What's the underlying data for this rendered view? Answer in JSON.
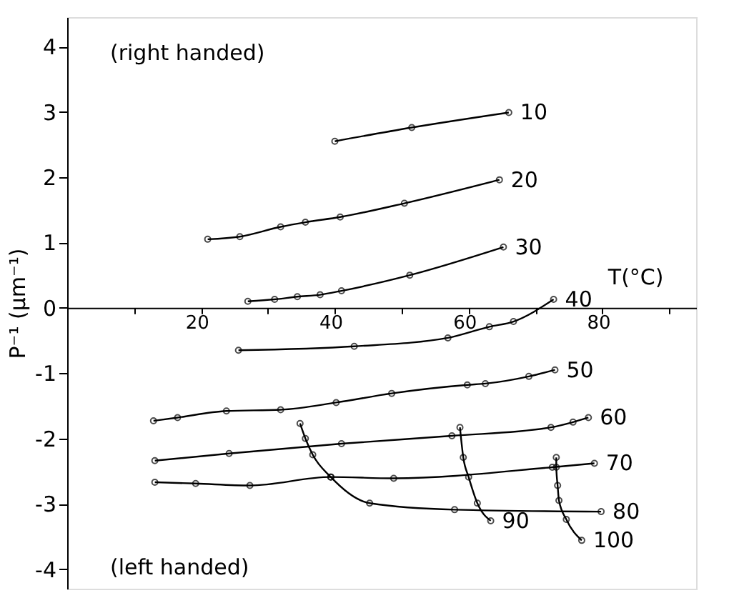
{
  "chart_data": {
    "type": "line",
    "xlabel": "T(°C)",
    "ylabel": "P⁻¹ (μm⁻¹)",
    "xlim": [
      0,
      94
    ],
    "ylim": [
      -4.3,
      4.45
    ],
    "xticks": [
      {
        "value": 10,
        "label": null
      },
      20,
      {
        "value": 30,
        "label": null
      },
      40,
      {
        "value": 50,
        "label": null
      },
      60,
      {
        "value": 70,
        "label": null
      },
      80,
      {
        "value": 90,
        "label": null
      }
    ],
    "yticks": [
      -4,
      -3,
      -2,
      -1,
      0,
      1,
      2,
      3,
      4
    ],
    "grid": false,
    "marker": "circle",
    "line_style": "solid",
    "annotations": [
      "(right handed)",
      "(left handed)"
    ],
    "series": [
      {
        "name": "10",
        "color": "#000000",
        "x": [
          40,
          51.5,
          66
        ],
        "values": [
          2.55,
          2.76,
          2.99
        ]
      },
      {
        "name": "20",
        "color": "#000000",
        "x": [
          21,
          25.8,
          31.9,
          35.6,
          40.8,
          50.4,
          64.6
        ],
        "values": [
          1.05,
          1.09,
          1.24,
          1.31,
          1.39,
          1.6,
          1.96
        ]
      },
      {
        "name": "30",
        "color": "#000000",
        "x": [
          27,
          31,
          34.4,
          37.8,
          41,
          51.2,
          65.2
        ],
        "values": [
          0.1,
          0.13,
          0.17,
          0.2,
          0.26,
          0.5,
          0.93
        ]
      },
      {
        "name": "40",
        "color": "#000000",
        "x": [
          25.6,
          42.9,
          56.9,
          63.1,
          66.7,
          72.7
        ],
        "values": [
          -0.65,
          -0.59,
          -0.46,
          -0.29,
          -0.21,
          0.13
        ]
      },
      {
        "name": "50",
        "color": "#000000",
        "x": [
          12.9,
          16.5,
          23.8,
          31.9,
          40.2,
          48.5,
          59.8,
          62.5,
          69,
          72.9
        ],
        "values": [
          -1.73,
          -1.68,
          -1.58,
          -1.56,
          -1.45,
          -1.31,
          -1.18,
          -1.16,
          -1.05,
          -0.95
        ]
      },
      {
        "name": "60",
        "color": "#000000",
        "x": [
          13.1,
          24.2,
          41,
          57.5,
          72.3,
          75.6,
          77.9
        ],
        "values": [
          -2.34,
          -2.23,
          -2.08,
          -1.96,
          -1.83,
          -1.75,
          -1.68
        ]
      },
      {
        "name": "70",
        "color": "#000000",
        "x": [
          13.1,
          19.2,
          27.3,
          39.4,
          48.8,
          72.5,
          78.8
        ],
        "values": [
          -2.67,
          -2.69,
          -2.72,
          -2.59,
          -2.61,
          -2.44,
          -2.38
        ]
      },
      {
        "name": "80",
        "color": "#000000",
        "x": [
          34.8,
          35.6,
          36.7,
          39.4,
          45.2,
          57.9,
          79.8
        ],
        "values": [
          -1.77,
          -2.0,
          -2.25,
          -2.59,
          -2.99,
          -3.09,
          -3.12
        ]
      },
      {
        "name": "90",
        "color": "#000000",
        "x": [
          58.7,
          59.2,
          60,
          61.3,
          63.3
        ],
        "values": [
          -1.83,
          -2.29,
          -2.59,
          -2.99,
          -3.26
        ]
      },
      {
        "name": "100",
        "color": "#000000",
        "x": [
          73.1,
          73.1,
          73.3,
          73.5,
          74.6,
          76.9
        ],
        "values": [
          -2.29,
          -2.44,
          -2.72,
          -2.95,
          -3.24,
          -3.56
        ]
      }
    ]
  }
}
